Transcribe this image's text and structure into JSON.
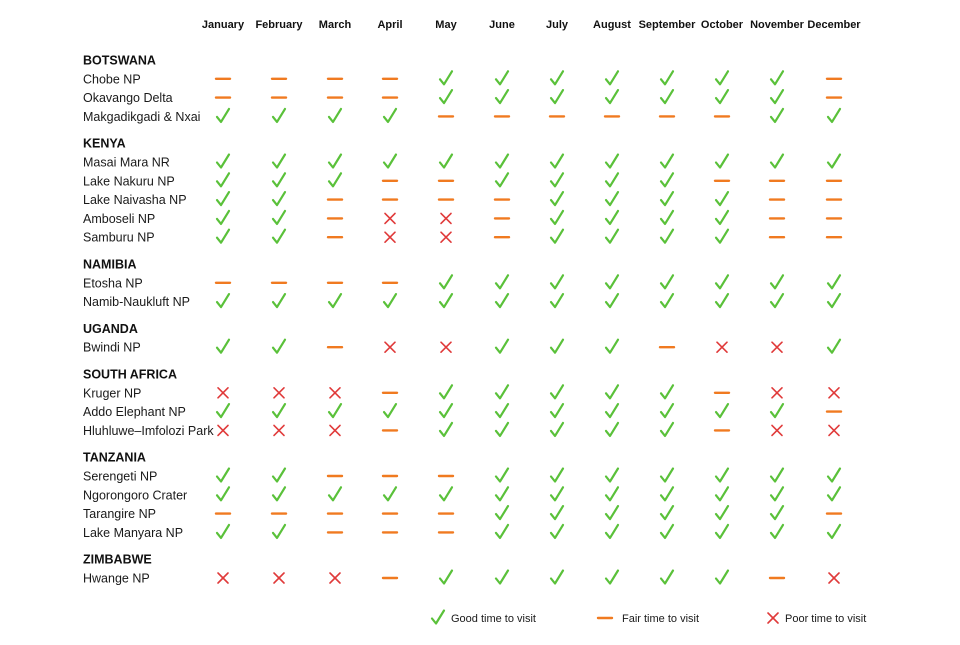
{
  "chart_data": {
    "type": "table",
    "months": [
      "January",
      "February",
      "March",
      "April",
      "May",
      "June",
      "July",
      "August",
      "September",
      "October",
      "November",
      "December"
    ],
    "colors": {
      "good": "#5ac13a",
      "fair": "#f07a20",
      "poor": "#e03a3a"
    },
    "legend": [
      {
        "key": "good",
        "label": "Good time to visit"
      },
      {
        "key": "fair",
        "label": "Fair time to visit"
      },
      {
        "key": "poor",
        "label": "Poor time to visit"
      }
    ],
    "groups": [
      {
        "country": "BOTSWANA",
        "parks": [
          {
            "name": "Chobe NP",
            "ratings": [
              "fair",
              "fair",
              "fair",
              "fair",
              "good",
              "good",
              "good",
              "good",
              "good",
              "good",
              "good",
              "fair"
            ]
          },
          {
            "name": "Okavango Delta",
            "ratings": [
              "fair",
              "fair",
              "fair",
              "fair",
              "good",
              "good",
              "good",
              "good",
              "good",
              "good",
              "good",
              "fair"
            ]
          },
          {
            "name": "Makgadikgadi & Nxai",
            "ratings": [
              "good",
              "good",
              "good",
              "good",
              "fair",
              "fair",
              "fair",
              "fair",
              "fair",
              "fair",
              "good",
              "good"
            ]
          }
        ]
      },
      {
        "country": "KENYA",
        "parks": [
          {
            "name": "Masai Mara NR",
            "ratings": [
              "good",
              "good",
              "good",
              "good",
              "good",
              "good",
              "good",
              "good",
              "good",
              "good",
              "good",
              "good"
            ]
          },
          {
            "name": "Lake Nakuru NP",
            "ratings": [
              "good",
              "good",
              "good",
              "fair",
              "fair",
              "good",
              "good",
              "good",
              "good",
              "fair",
              "fair",
              "fair"
            ]
          },
          {
            "name": "Lake Naivasha NP",
            "ratings": [
              "good",
              "good",
              "fair",
              "fair",
              "fair",
              "fair",
              "good",
              "good",
              "good",
              "good",
              "fair",
              "fair"
            ]
          },
          {
            "name": "Amboseli NP",
            "ratings": [
              "good",
              "good",
              "fair",
              "poor",
              "poor",
              "fair",
              "good",
              "good",
              "good",
              "good",
              "fair",
              "fair"
            ]
          },
          {
            "name": "Samburu NP",
            "ratings": [
              "good",
              "good",
              "fair",
              "poor",
              "poor",
              "fair",
              "good",
              "good",
              "good",
              "good",
              "fair",
              "fair"
            ]
          }
        ]
      },
      {
        "country": "NAMIBIA",
        "parks": [
          {
            "name": "Etosha NP",
            "ratings": [
              "fair",
              "fair",
              "fair",
              "fair",
              "good",
              "good",
              "good",
              "good",
              "good",
              "good",
              "good",
              "good"
            ]
          },
          {
            "name": "Namib-Naukluft NP",
            "ratings": [
              "good",
              "good",
              "good",
              "good",
              "good",
              "good",
              "good",
              "good",
              "good",
              "good",
              "good",
              "good"
            ]
          }
        ]
      },
      {
        "country": "UGANDA",
        "parks": [
          {
            "name": "Bwindi NP",
            "ratings": [
              "good",
              "good",
              "fair",
              "poor",
              "poor",
              "good",
              "good",
              "good",
              "fair",
              "poor",
              "poor",
              "good"
            ]
          }
        ]
      },
      {
        "country": "SOUTH AFRICA",
        "parks": [
          {
            "name": "Kruger NP",
            "ratings": [
              "poor",
              "poor",
              "poor",
              "fair",
              "good",
              "good",
              "good",
              "good",
              "good",
              "fair",
              "poor",
              "poor"
            ]
          },
          {
            "name": "Addo Elephant NP",
            "ratings": [
              "good",
              "good",
              "good",
              "good",
              "good",
              "good",
              "good",
              "good",
              "good",
              "good",
              "good",
              "fair"
            ]
          },
          {
            "name": "Hluhluwe–Imfolozi Park",
            "ratings": [
              "poor",
              "poor",
              "poor",
              "fair",
              "good",
              "good",
              "good",
              "good",
              "good",
              "fair",
              "poor",
              "poor"
            ]
          }
        ]
      },
      {
        "country": "TANZANIA",
        "parks": [
          {
            "name": "Serengeti NP",
            "ratings": [
              "good",
              "good",
              "fair",
              "fair",
              "fair",
              "good",
              "good",
              "good",
              "good",
              "good",
              "good",
              "good"
            ]
          },
          {
            "name": "Ngorongoro Crater",
            "ratings": [
              "good",
              "good",
              "good",
              "good",
              "good",
              "good",
              "good",
              "good",
              "good",
              "good",
              "good",
              "good"
            ]
          },
          {
            "name": "Tarangire NP",
            "ratings": [
              "fair",
              "fair",
              "fair",
              "fair",
              "fair",
              "good",
              "good",
              "good",
              "good",
              "good",
              "good",
              "fair"
            ]
          },
          {
            "name": "Lake Manyara NP",
            "ratings": [
              "good",
              "good",
              "fair",
              "fair",
              "fair",
              "good",
              "good",
              "good",
              "good",
              "good",
              "good",
              "good"
            ]
          }
        ]
      },
      {
        "country": "ZIMBABWE",
        "parks": [
          {
            "name": "Hwange NP",
            "ratings": [
              "poor",
              "poor",
              "poor",
              "fair",
              "good",
              "good",
              "good",
              "good",
              "good",
              "good",
              "fair",
              "poor"
            ]
          }
        ]
      }
    ]
  }
}
